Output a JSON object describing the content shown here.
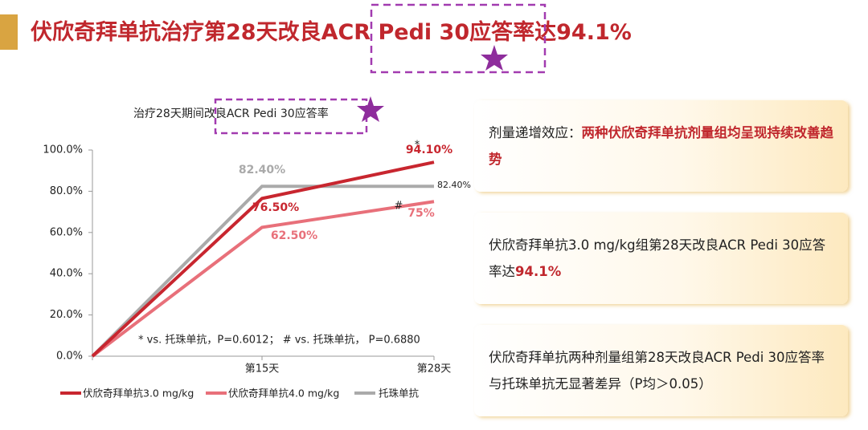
{
  "title": "伏欣奇拜单抗治疗第28天改良ACR Pedi 30应答率达94.1%",
  "panels": [
    [
      {
        "text": "剂量递增效应：",
        "red": false
      },
      {
        "text": "两种伏欣奇拜单抗剂量组均呈现持续改善趋势",
        "red": true
      }
    ],
    [
      {
        "text": "伏欣奇拜单抗3.0 mg/kg组第28天改良ACR Pedi 30应答率达",
        "red": false
      },
      {
        "text": "94.1%",
        "red": true
      }
    ],
    [
      {
        "text": "伏欣奇拜单抗两种剂量组第28天改良ACR Pedi 30应答率与托珠单抗无显著差异（P均＞0.05）",
        "red": false
      }
    ]
  ],
  "chart_data": {
    "type": "line",
    "title": "治疗28天期间改良ACR Pedi 30应答率",
    "categories": [
      null,
      "第15天",
      "第28天"
    ],
    "series": [
      {
        "name": "伏欣奇拜单抗3.0 mg/kg",
        "color": "#c8262f",
        "values": [
          0,
          76.5,
          94.1
        ],
        "value_labels": [
          null,
          "76.50%",
          "94.10%"
        ]
      },
      {
        "name": "伏欣奇拜单抗4.0 mg/kg",
        "color": "#e8707a",
        "values": [
          0,
          62.5,
          75
        ],
        "value_labels": [
          null,
          "62.50%",
          "75%"
        ]
      },
      {
        "name": "托珠单抗",
        "color": "#aaaaaa",
        "values": [
          0,
          82.4,
          82.4
        ],
        "value_labels": [
          null,
          "82.40%",
          "82.40%"
        ]
      }
    ],
    "ylim": [
      0,
      100
    ],
    "yticks": [
      {
        "value": 0,
        "label": "0.0%"
      },
      {
        "value": 20,
        "label": "20.0%"
      },
      {
        "value": 40,
        "label": "40.0%"
      },
      {
        "value": 60,
        "label": "60.0%"
      },
      {
        "value": 80,
        "label": "80.0%"
      },
      {
        "value": 100,
        "label": "100.0%"
      }
    ],
    "annotations": [
      "*",
      "#"
    ],
    "footnote": "* vs. 托珠单抗，P=0.6012； # vs. 托珠单抗， P=0.6880"
  }
}
